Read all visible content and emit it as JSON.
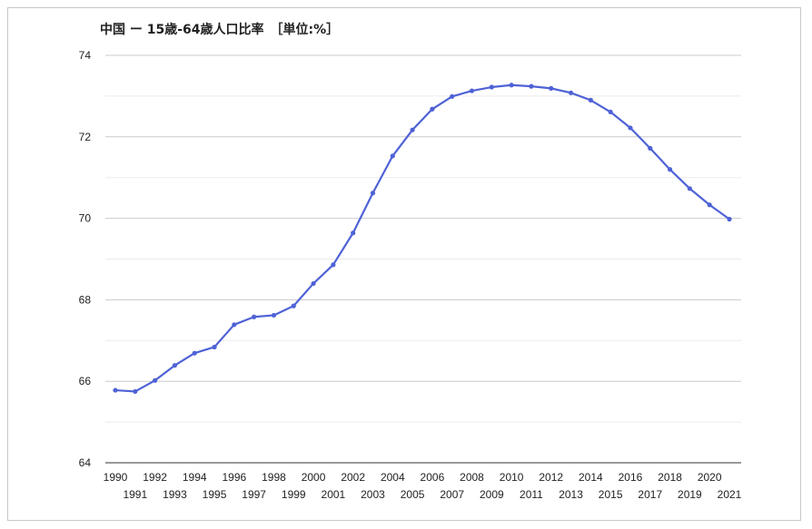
{
  "chart_data": {
    "type": "line",
    "title": "中国 ー 15歳-64歳人口比率　［単位:%］",
    "xlabel": "",
    "ylabel": "",
    "ylim": [
      64,
      74
    ],
    "yticks": [
      64,
      66,
      68,
      70,
      72,
      74
    ],
    "grid": true,
    "legend": "none",
    "line_color": "#4f62d6",
    "x": [
      1990,
      1991,
      1992,
      1993,
      1994,
      1995,
      1996,
      1997,
      1998,
      1999,
      2000,
      2001,
      2002,
      2003,
      2004,
      2005,
      2006,
      2007,
      2008,
      2009,
      2010,
      2011,
      2012,
      2013,
      2014,
      2015,
      2016,
      2017,
      2018,
      2019,
      2020,
      2021
    ],
    "series": [
      {
        "values": [
          65.78,
          65.75,
          66.02,
          66.39,
          66.69,
          66.84,
          67.39,
          67.58,
          67.62,
          67.85,
          68.4,
          68.86,
          69.64,
          70.62,
          71.53,
          72.17,
          72.68,
          72.99,
          73.13,
          73.22,
          73.27,
          73.24,
          73.19,
          73.08,
          72.9,
          72.61,
          72.22,
          71.72,
          71.2,
          70.73,
          70.33,
          69.98
        ]
      }
    ]
  }
}
